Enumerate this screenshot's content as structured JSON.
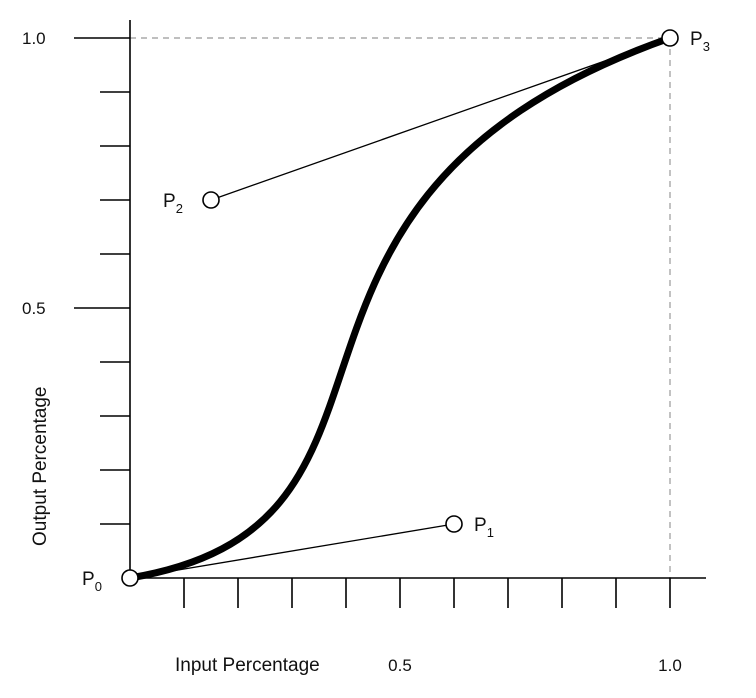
{
  "chart_data": {
    "type": "line",
    "xlabel": "Input Percentage",
    "ylabel": "Output Percentage",
    "xlim": [
      0,
      1
    ],
    "ylim": [
      0,
      1
    ],
    "grid": false,
    "x_ticks": [
      0.1,
      0.2,
      0.3,
      0.4,
      0.5,
      0.6,
      0.7,
      0.8,
      0.9,
      1.0
    ],
    "y_ticks": [
      0.1,
      0.2,
      0.3,
      0.4,
      0.5,
      0.6,
      0.7,
      0.8,
      0.9,
      1.0
    ],
    "x_tick_labels": [
      {
        "value": 0.5,
        "text": "0.5"
      },
      {
        "value": 1.0,
        "text": "1.0"
      }
    ],
    "y_tick_labels": [
      {
        "value": 0.5,
        "text": "0.5"
      },
      {
        "value": 1.0,
        "text": "1.0"
      }
    ],
    "control_points": [
      {
        "label": "P",
        "sub": "0",
        "x": 0.0,
        "y": 0.0,
        "label_side": "left"
      },
      {
        "label": "P",
        "sub": "1",
        "x": 0.6,
        "y": 0.1,
        "label_side": "right"
      },
      {
        "label": "P",
        "sub": "2",
        "x": 0.15,
        "y": 0.7,
        "label_side": "left"
      },
      {
        "label": "P",
        "sub": "3",
        "x": 1.0,
        "y": 1.0,
        "label_side": "right"
      }
    ],
    "handles": [
      [
        0,
        1
      ],
      [
        3,
        2
      ]
    ],
    "curve": "cubic-bezier(0.6, 0.1, 0.15, 0.7)"
  }
}
